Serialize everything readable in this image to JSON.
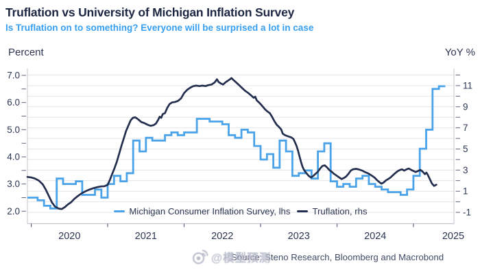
{
  "header": {
    "title": "Truflation vs University of Michigan Inflation Survey",
    "subtitle": "Is Truflation on to something? Everyone will be surprised a lot in case"
  },
  "axes": {
    "left": {
      "title": "Percent",
      "tick_labels": [
        "7.0",
        "6.0",
        "5.0",
        "4.0",
        "3.0",
        "2.0"
      ],
      "tick_values": [
        7,
        6,
        5,
        4,
        3,
        2
      ],
      "minor_step": 0.5,
      "minor_range": [
        2,
        7
      ],
      "visible_range": [
        1.53,
        7.13
      ]
    },
    "right": {
      "title": "YoY %",
      "tick_labels": [
        "11",
        "9",
        "7",
        "5",
        "3",
        "1",
        "-1"
      ],
      "tick_values": [
        11,
        9,
        7,
        5,
        3,
        1,
        -1
      ],
      "minor_step": 1,
      "minor_range": [
        -1,
        12
      ],
      "visible_range": [
        -2.05,
        12.25
      ]
    },
    "x": {
      "tick_years": [
        2020,
        2021,
        2022,
        2023,
        2024,
        2025
      ],
      "year_labels": [
        "2020",
        "2021",
        "2022",
        "2023",
        "2024",
        "2025"
      ]
    }
  },
  "legend": {
    "items": [
      {
        "label": "Michigan Consumer Inflation Survey, lhs",
        "color": "#4aa3e9"
      },
      {
        "label": "Truflation, rhs",
        "color": "#232e4e"
      }
    ]
  },
  "source": "Source: Steno Research, Bloomberg and Macrobond",
  "watermark": {
    "icon": "weibo-icon",
    "text": "@模型预测"
  },
  "colors": {
    "michigan": "#4aa3e9",
    "truflation": "#232e4e",
    "grid": "#e3e4e8",
    "axis": "#c2c5cd",
    "tick": "#5a6278",
    "text": "#2b3550",
    "title": "#1d2642",
    "subtitle": "#379ff2",
    "source": "#434b66",
    "watermark": "#b7bbca"
  },
  "chart_data": {
    "type": "line",
    "title": "Truflation vs University of Michigan Inflation Survey",
    "x_range_decimal_years": [
      2019.95,
      2025.53
    ],
    "left_axis_label": "Percent",
    "right_axis_label": "YoY %",
    "grid": "horizontal gridlines every 1 unit of right axis, from -1 to 12",
    "legend_position": "bottom inside plot",
    "series": [
      {
        "name": "Michigan Consumer Inflation Survey, lhs",
        "axis": "lhs",
        "style": "step",
        "color": "#4aa3e9",
        "frequency": "monthly",
        "start": "2019-12",
        "values": [
          2.5,
          2.5,
          2.4,
          2.2,
          2.1,
          3.2,
          3.0,
          3.0,
          3.1,
          2.6,
          2.6,
          2.8,
          2.5,
          3.0,
          3.3,
          3.1,
          3.4,
          4.6,
          4.2,
          4.7,
          4.6,
          4.6,
          4.8,
          4.9,
          4.8,
          4.9,
          4.9,
          5.4,
          5.4,
          5.3,
          5.3,
          5.2,
          4.8,
          4.7,
          5.0,
          4.9,
          4.4,
          3.9,
          4.1,
          3.6,
          4.6,
          4.2,
          3.3,
          3.4,
          3.5,
          3.2,
          4.2,
          4.5,
          3.1,
          2.9,
          3.0,
          2.9,
          3.2,
          3.3,
          3.0,
          2.9,
          2.8,
          2.7,
          2.7,
          2.6,
          2.8,
          3.3,
          4.3,
          5.0,
          6.5,
          6.6
        ]
      },
      {
        "name": "Truflation, rhs",
        "axis": "rhs",
        "style": "line",
        "color": "#232e4e",
        "points": [
          [
            2019.93,
            2.35
          ],
          [
            2020.0,
            2.3
          ],
          [
            2020.05,
            2.2
          ],
          [
            2020.1,
            2.0
          ],
          [
            2020.15,
            1.65
          ],
          [
            2020.19,
            1.15
          ],
          [
            2020.23,
            0.55
          ],
          [
            2020.27,
            -0.05
          ],
          [
            2020.31,
            -0.45
          ],
          [
            2020.36,
            -0.65
          ],
          [
            2020.4,
            -0.68
          ],
          [
            2020.44,
            -0.5
          ],
          [
            2020.48,
            -0.25
          ],
          [
            2020.52,
            -0.05
          ],
          [
            2020.56,
            0.25
          ],
          [
            2020.61,
            0.55
          ],
          [
            2020.66,
            0.8
          ],
          [
            2020.71,
            1.0
          ],
          [
            2020.76,
            1.15
          ],
          [
            2020.81,
            1.28
          ],
          [
            2020.86,
            1.38
          ],
          [
            2020.91,
            1.45
          ],
          [
            2020.96,
            1.48
          ],
          [
            2021.0,
            1.6
          ],
          [
            2021.03,
            2.1
          ],
          [
            2021.06,
            2.65
          ],
          [
            2021.09,
            3.2
          ],
          [
            2021.12,
            3.8
          ],
          [
            2021.15,
            4.55
          ],
          [
            2021.18,
            5.3
          ],
          [
            2021.21,
            6.0
          ],
          [
            2021.24,
            6.7
          ],
          [
            2021.27,
            7.2
          ],
          [
            2021.3,
            7.7
          ],
          [
            2021.33,
            7.95
          ],
          [
            2021.36,
            8.0
          ],
          [
            2021.4,
            7.8
          ],
          [
            2021.44,
            7.55
          ],
          [
            2021.48,
            7.45
          ],
          [
            2021.52,
            7.3
          ],
          [
            2021.56,
            7.2
          ],
          [
            2021.6,
            7.25
          ],
          [
            2021.63,
            7.4
          ],
          [
            2021.66,
            7.75
          ],
          [
            2021.68,
            8.05
          ],
          [
            2021.7,
            7.95
          ],
          [
            2021.72,
            8.3
          ],
          [
            2021.75,
            8.4
          ],
          [
            2021.78,
            8.9
          ],
          [
            2021.81,
            9.25
          ],
          [
            2021.84,
            9.4
          ],
          [
            2021.88,
            9.45
          ],
          [
            2021.92,
            9.55
          ],
          [
            2021.96,
            9.8
          ],
          [
            2022.0,
            10.3
          ],
          [
            2022.04,
            10.6
          ],
          [
            2022.08,
            10.8
          ],
          [
            2022.12,
            10.95
          ],
          [
            2022.16,
            11.0
          ],
          [
            2022.2,
            10.95
          ],
          [
            2022.24,
            11.0
          ],
          [
            2022.28,
            10.95
          ],
          [
            2022.32,
            11.05
          ],
          [
            2022.36,
            11.1
          ],
          [
            2022.4,
            11.3
          ],
          [
            2022.43,
            11.6
          ],
          [
            2022.45,
            11.35
          ],
          [
            2022.48,
            11.2
          ],
          [
            2022.51,
            11.1
          ],
          [
            2022.54,
            11.3
          ],
          [
            2022.57,
            11.45
          ],
          [
            2022.6,
            11.6
          ],
          [
            2022.62,
            11.72
          ],
          [
            2022.65,
            11.5
          ],
          [
            2022.68,
            11.3
          ],
          [
            2022.71,
            11.1
          ],
          [
            2022.74,
            10.9
          ],
          [
            2022.77,
            10.7
          ],
          [
            2022.8,
            10.5
          ],
          [
            2022.84,
            10.3
          ],
          [
            2022.88,
            10.05
          ],
          [
            2022.91,
            9.85
          ],
          [
            2022.93,
            9.95
          ],
          [
            2022.95,
            9.6
          ],
          [
            2022.98,
            9.4
          ],
          [
            2023.0,
            9.25
          ],
          [
            2023.03,
            9.0
          ],
          [
            2023.06,
            8.75
          ],
          [
            2023.09,
            8.55
          ],
          [
            2023.12,
            8.4
          ],
          [
            2023.15,
            8.05
          ],
          [
            2023.18,
            7.65
          ],
          [
            2023.21,
            7.3
          ],
          [
            2023.24,
            7.1
          ],
          [
            2023.27,
            6.85
          ],
          [
            2023.29,
            6.45
          ],
          [
            2023.32,
            6.3
          ],
          [
            2023.36,
            6.2
          ],
          [
            2023.4,
            6.1
          ],
          [
            2023.43,
            5.95
          ],
          [
            2023.45,
            5.65
          ],
          [
            2023.47,
            5.3
          ],
          [
            2023.49,
            4.85
          ],
          [
            2023.51,
            4.3
          ],
          [
            2023.53,
            3.75
          ],
          [
            2023.55,
            3.3
          ],
          [
            2023.57,
            3.0
          ],
          [
            2023.6,
            2.7
          ],
          [
            2023.63,
            2.45
          ],
          [
            2023.66,
            2.3
          ],
          [
            2023.69,
            2.45
          ],
          [
            2023.72,
            2.65
          ],
          [
            2023.75,
            2.85
          ],
          [
            2023.78,
            3.15
          ],
          [
            2023.81,
            3.4
          ],
          [
            2023.84,
            3.45
          ],
          [
            2023.87,
            3.25
          ],
          [
            2023.9,
            3.0
          ],
          [
            2023.93,
            2.85
          ],
          [
            2023.96,
            2.65
          ],
          [
            2024.0,
            2.45
          ],
          [
            2024.03,
            2.3
          ],
          [
            2024.06,
            2.15
          ],
          [
            2024.09,
            2.25
          ],
          [
            2024.12,
            2.4
          ],
          [
            2024.15,
            2.65
          ],
          [
            2024.18,
            2.95
          ],
          [
            2024.21,
            3.08
          ],
          [
            2024.25,
            3.12
          ],
          [
            2024.29,
            3.05
          ],
          [
            2024.33,
            2.95
          ],
          [
            2024.37,
            2.8
          ],
          [
            2024.41,
            2.68
          ],
          [
            2024.45,
            2.5
          ],
          [
            2024.49,
            2.3
          ],
          [
            2024.52,
            2.08
          ],
          [
            2024.55,
            1.88
          ],
          [
            2024.58,
            1.72
          ],
          [
            2024.61,
            1.82
          ],
          [
            2024.64,
            2.02
          ],
          [
            2024.67,
            2.15
          ],
          [
            2024.7,
            2.3
          ],
          [
            2024.73,
            2.5
          ],
          [
            2024.76,
            2.7
          ],
          [
            2024.79,
            2.88
          ],
          [
            2024.82,
            3.0
          ],
          [
            2024.85,
            3.07
          ],
          [
            2024.88,
            2.95
          ],
          [
            2024.91,
            3.07
          ],
          [
            2024.94,
            3.15
          ],
          [
            2024.97,
            3.02
          ],
          [
            2025.0,
            2.92
          ],
          [
            2025.03,
            2.82
          ],
          [
            2025.06,
            2.92
          ],
          [
            2025.09,
            3.02
          ],
          [
            2025.12,
            2.86
          ],
          [
            2025.15,
            2.62
          ],
          [
            2025.17,
            2.76
          ],
          [
            2025.19,
            2.52
          ],
          [
            2025.21,
            2.22
          ],
          [
            2025.24,
            1.75
          ],
          [
            2025.27,
            1.5
          ],
          [
            2025.3,
            1.62
          ]
        ]
      }
    ]
  }
}
